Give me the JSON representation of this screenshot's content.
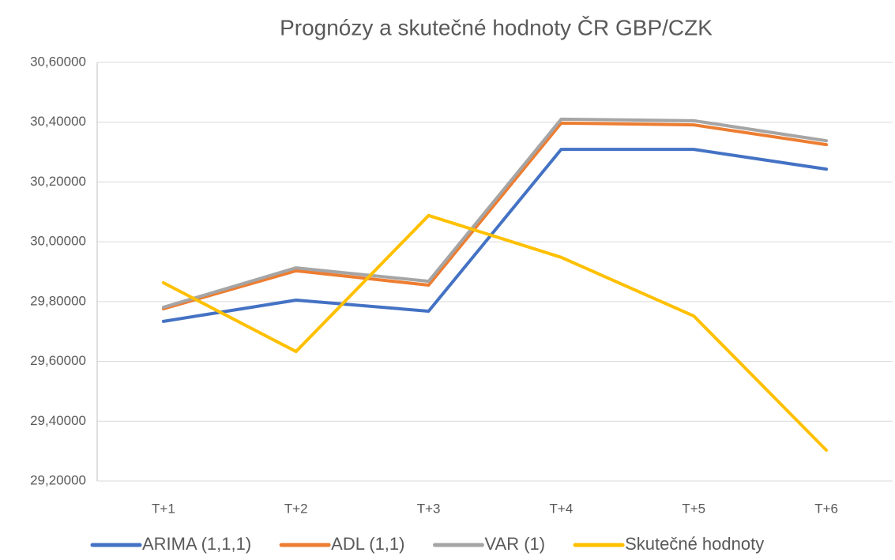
{
  "chart_data": {
    "type": "line",
    "title": "Prognózy a skutečné hodnoty ČR GBP/CZK",
    "categories": [
      "T+1",
      "T+2",
      "T+3",
      "T+4",
      "T+5",
      "T+6"
    ],
    "series": [
      {
        "name": "ARIMA (1,1,1)",
        "color": "#4472c4",
        "values": [
          29.734,
          29.805,
          29.768,
          30.309,
          30.309,
          30.243
        ]
      },
      {
        "name": "ADL (1,1)",
        "color": "#ed7d31",
        "values": [
          29.776,
          29.903,
          29.855,
          30.397,
          30.391,
          30.325
        ]
      },
      {
        "name": "VAR (1)",
        "color": "#a5a5a5",
        "values": [
          29.781,
          29.913,
          29.868,
          30.41,
          30.405,
          30.338
        ]
      },
      {
        "name": "Skutečné hodnoty",
        "color": "#ffc000",
        "values": [
          29.863,
          29.633,
          30.088,
          29.948,
          29.752,
          29.303
        ]
      }
    ],
    "ylim": [
      29.2,
      30.6
    ],
    "yticks": [
      {
        "value": 29.2,
        "label": "29,20000"
      },
      {
        "value": 29.4,
        "label": "29,40000"
      },
      {
        "value": 29.6,
        "label": "29,60000"
      },
      {
        "value": 29.8,
        "label": "29,80000"
      },
      {
        "value": 30.0,
        "label": "30,00000"
      },
      {
        "value": 30.2,
        "label": "30,20000"
      },
      {
        "value": 30.4,
        "label": "30,40000"
      },
      {
        "value": 30.6,
        "label": "30,60000"
      }
    ],
    "grid": true,
    "legend": "bottom"
  }
}
